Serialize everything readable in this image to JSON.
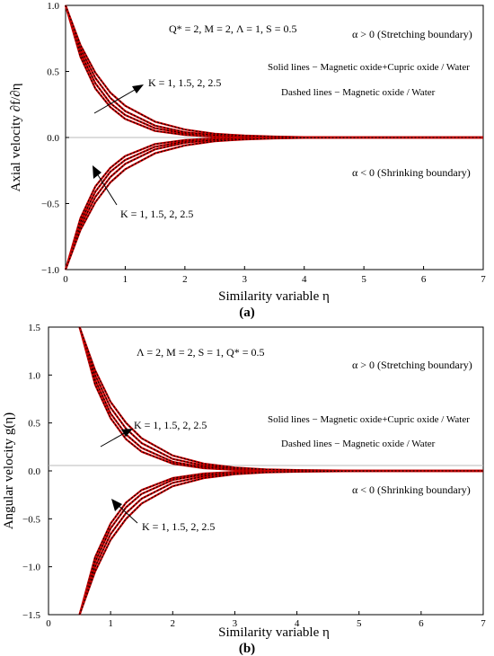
{
  "chart_data": [
    {
      "type": "line",
      "panel_label": "(a)",
      "params": "Q* = 2,  M = 2,  Λ = 1, S = 0.5",
      "xlabel": "Similarity variable η",
      "ylabel": "Axial velocity ∂f/∂η",
      "xlim": [
        0,
        7
      ],
      "ylim": [
        -1.0,
        1.0
      ],
      "xticks": [
        "0",
        "1",
        "2",
        "3",
        "4",
        "5",
        "6",
        "7"
      ],
      "yticks": [
        "1.0",
        "0.5",
        "0.0",
        "−0.5",
        "−1.0"
      ],
      "annotations": {
        "stretching": "α > 0 (Stretching boundary)",
        "shrinking": "α < 0 (Shrinking boundary)",
        "solid": "Solid lines − Magnetic oxide+Cupric oxide / Water",
        "dashed": "Dashed lines − Magnetic oxide / Water",
        "k_upper": "K = 1, 1.5, 2, 2.5",
        "k_lower": "K = 1, 1.5, 2, 2.5"
      },
      "series": [
        {
          "name": "K = 1",
          "x": [
            0,
            0.25,
            0.5,
            0.75,
            1.0,
            1.5,
            2.0,
            2.5,
            3.0,
            3.5,
            4.0,
            5.0,
            6.0,
            7.0
          ],
          "y_stretch": [
            1.0,
            0.61,
            0.37,
            0.23,
            0.14,
            0.05,
            0.02,
            0.007,
            0.003,
            0.001,
            0.0,
            0.0,
            0.0,
            0.0
          ]
        },
        {
          "name": "K = 1.5",
          "x": [
            0,
            0.25,
            0.5,
            0.75,
            1.0,
            1.5,
            2.0,
            2.5,
            3.0,
            3.5,
            4.0,
            5.0,
            6.0,
            7.0
          ],
          "y_stretch": [
            1.0,
            0.64,
            0.41,
            0.26,
            0.17,
            0.07,
            0.03,
            0.012,
            0.005,
            0.002,
            0.001,
            0.0,
            0.0,
            0.0
          ]
        },
        {
          "name": "K = 2",
          "x": [
            0,
            0.25,
            0.5,
            0.75,
            1.0,
            1.5,
            2.0,
            2.5,
            3.0,
            3.5,
            4.0,
            5.0,
            6.0,
            7.0
          ],
          "y_stretch": [
            1.0,
            0.67,
            0.45,
            0.3,
            0.2,
            0.09,
            0.04,
            0.018,
            0.008,
            0.004,
            0.002,
            0.0,
            0.0,
            0.0
          ]
        },
        {
          "name": "K = 2.5",
          "x": [
            0,
            0.25,
            0.5,
            0.75,
            1.0,
            1.5,
            2.0,
            2.5,
            3.0,
            3.5,
            4.0,
            5.0,
            6.0,
            7.0
          ],
          "y_stretch": [
            1.0,
            0.7,
            0.49,
            0.34,
            0.24,
            0.12,
            0.06,
            0.028,
            0.014,
            0.007,
            0.003,
            0.001,
            0.0,
            0.0
          ]
        }
      ],
      "colors": {
        "solid": "#cc0000",
        "dashed": "#000000"
      }
    },
    {
      "type": "line",
      "panel_label": "(b)",
      "params": "Λ = 2,  M = 2,  S = 1,  Q* = 0.5",
      "xlabel": "Similarity variable η",
      "ylabel": "Angular velocity g(η)",
      "xlim": [
        0,
        7
      ],
      "ylim": [
        -1.5,
        1.5
      ],
      "xticks": [
        "0",
        "1",
        "2",
        "3",
        "4",
        "5",
        "6",
        "7"
      ],
      "yticks": [
        "1.5",
        "1.0",
        "0.5",
        "0.0",
        "−0.5",
        "−1.0",
        "−1.5"
      ],
      "annotations": {
        "stretching": "α > 0 (Stretching boundary)",
        "shrinking": "α < 0 (Shrinking boundary)",
        "solid": "Solid lines − Magnetic oxide+Cupric oxide / Water",
        "dashed": "Dashed lines − Magnetic oxide / Water",
        "k_upper": "K  = 1, 1.5, 2, 2.5",
        "k_lower": "K = 1, 1.5, 2, 2.5"
      },
      "series": [
        {
          "name": "K = 1",
          "x": [
            0.5,
            0.75,
            1.0,
            1.25,
            1.5,
            2.0,
            2.5,
            3.0,
            3.5,
            4.0,
            5.0,
            6.0,
            7.0
          ],
          "y_stretch": [
            1.5,
            0.9,
            0.55,
            0.33,
            0.2,
            0.075,
            0.028,
            0.01,
            0.004,
            0.001,
            0.0,
            0.0,
            0.0
          ]
        },
        {
          "name": "K = 1.5",
          "x": [
            0.5,
            0.75,
            1.0,
            1.25,
            1.5,
            2.0,
            2.5,
            3.0,
            3.5,
            4.0,
            5.0,
            6.0,
            7.0
          ],
          "y_stretch": [
            1.5,
            0.95,
            0.6,
            0.38,
            0.24,
            0.095,
            0.038,
            0.015,
            0.006,
            0.002,
            0.0,
            0.0,
            0.0
          ]
        },
        {
          "name": "K = 2",
          "x": [
            0.5,
            0.75,
            1.0,
            1.25,
            1.5,
            2.0,
            2.5,
            3.0,
            3.5,
            4.0,
            5.0,
            6.0,
            7.0
          ],
          "y_stretch": [
            1.5,
            1.0,
            0.66,
            0.44,
            0.29,
            0.125,
            0.055,
            0.024,
            0.01,
            0.004,
            0.001,
            0.0,
            0.0
          ]
        },
        {
          "name": "K = 2.5",
          "x": [
            0.5,
            0.75,
            1.0,
            1.25,
            1.5,
            2.0,
            2.5,
            3.0,
            3.5,
            4.0,
            5.0,
            6.0,
            7.0
          ],
          "y_stretch": [
            1.5,
            1.05,
            0.72,
            0.5,
            0.34,
            0.16,
            0.075,
            0.035,
            0.016,
            0.008,
            0.002,
            0.0,
            0.0
          ]
        }
      ],
      "colors": {
        "solid": "#cc0000",
        "dashed": "#000000"
      }
    }
  ]
}
